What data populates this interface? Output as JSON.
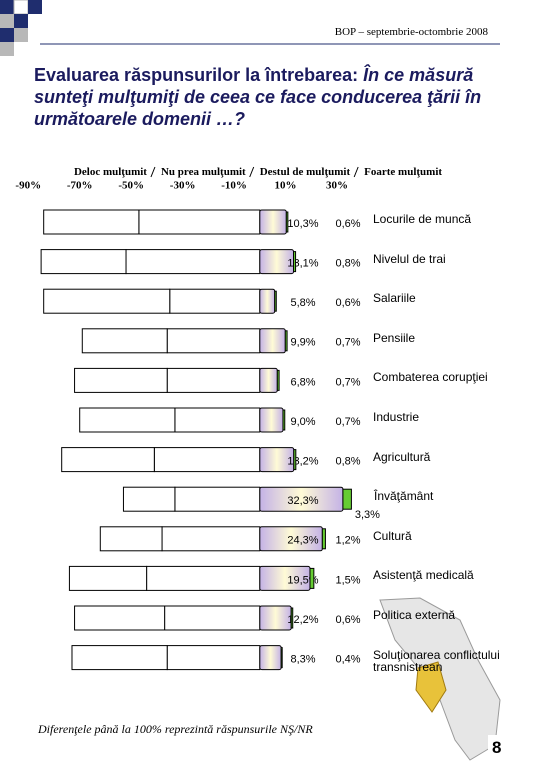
{
  "header": "BOP – septembrie-octombrie 2008",
  "title": "Evaluarea răspunsurilor la întrebarea:",
  "question": "În ce măsură sunteţi mulţumiţi de ceea ce face conducerea ţării în următoarele domenii …?",
  "footnote": "Diferenţele până la 100% reprezintă răspunsurile NŞ/NR",
  "page_number": "8",
  "chart_data": {
    "type": "diverging_bar",
    "categories": [
      "Locurile de muncă",
      "Nivelul de trai",
      "Salariile",
      "Pensiile",
      "Combaterea corupţiei",
      "Industrie",
      "Agricultură",
      "Învăţământ",
      "Cultură",
      "Asistenţă medicală",
      "Politica externă",
      "Soluţionarea conflictului transnistrean"
    ],
    "series": [
      {
        "name": "Deloc mulţumit",
        "color": "#ffffff",
        "values": [
          -37,
          -33,
          -49,
          -33,
          -36,
          -37,
          -36,
          -20,
          -24,
          -30,
          -35,
          -37
        ]
      },
      {
        "name": "Nu prea mulţumit",
        "color": "#ffffff",
        "values": [
          -47,
          -52,
          -35,
          -36,
          -36,
          -33,
          -41,
          -33,
          -38,
          -44,
          -37,
          -36
        ]
      },
      {
        "name": "Destul de mulţumit",
        "color": "#d8c8f0",
        "values": [
          10.3,
          13.1,
          5.8,
          9.9,
          6.8,
          9.0,
          13.2,
          32.3,
          24.3,
          19.5,
          12.2,
          8.3
        ],
        "value_labels": [
          "10,3%",
          "13,1%",
          "5,8%",
          "9,9%",
          "6,8%",
          "9,0%",
          "13,2%",
          "32,3%",
          "24,3%",
          "19,5%",
          "12,2%",
          "8,3%"
        ]
      },
      {
        "name": "Foarte mulţumit",
        "color": "#66cc33",
        "values": [
          0.6,
          0.8,
          0.6,
          0.7,
          0.7,
          0.7,
          0.8,
          3.3,
          1.2,
          1.5,
          0.6,
          0.4
        ],
        "value_labels": [
          "0,6%",
          "0,8%",
          "0,6%",
          "0,7%",
          "0,7%",
          "0,7%",
          "0,8%",
          "3,3%",
          "1,2%",
          "1,5%",
          "0,6%",
          "0,4%"
        ]
      }
    ],
    "xlim": [
      -90,
      30
    ],
    "xticks": [
      {
        "value": -90,
        "label": "-90%"
      },
      {
        "value": -70,
        "label": "-70%"
      },
      {
        "value": -50,
        "label": "-50%"
      },
      {
        "value": -30,
        "label": "-30%"
      },
      {
        "value": -10,
        "label": "-10%"
      },
      {
        "value": 10,
        "label": "10%"
      },
      {
        "value": 30,
        "label": "30%"
      }
    ],
    "grid": false
  }
}
